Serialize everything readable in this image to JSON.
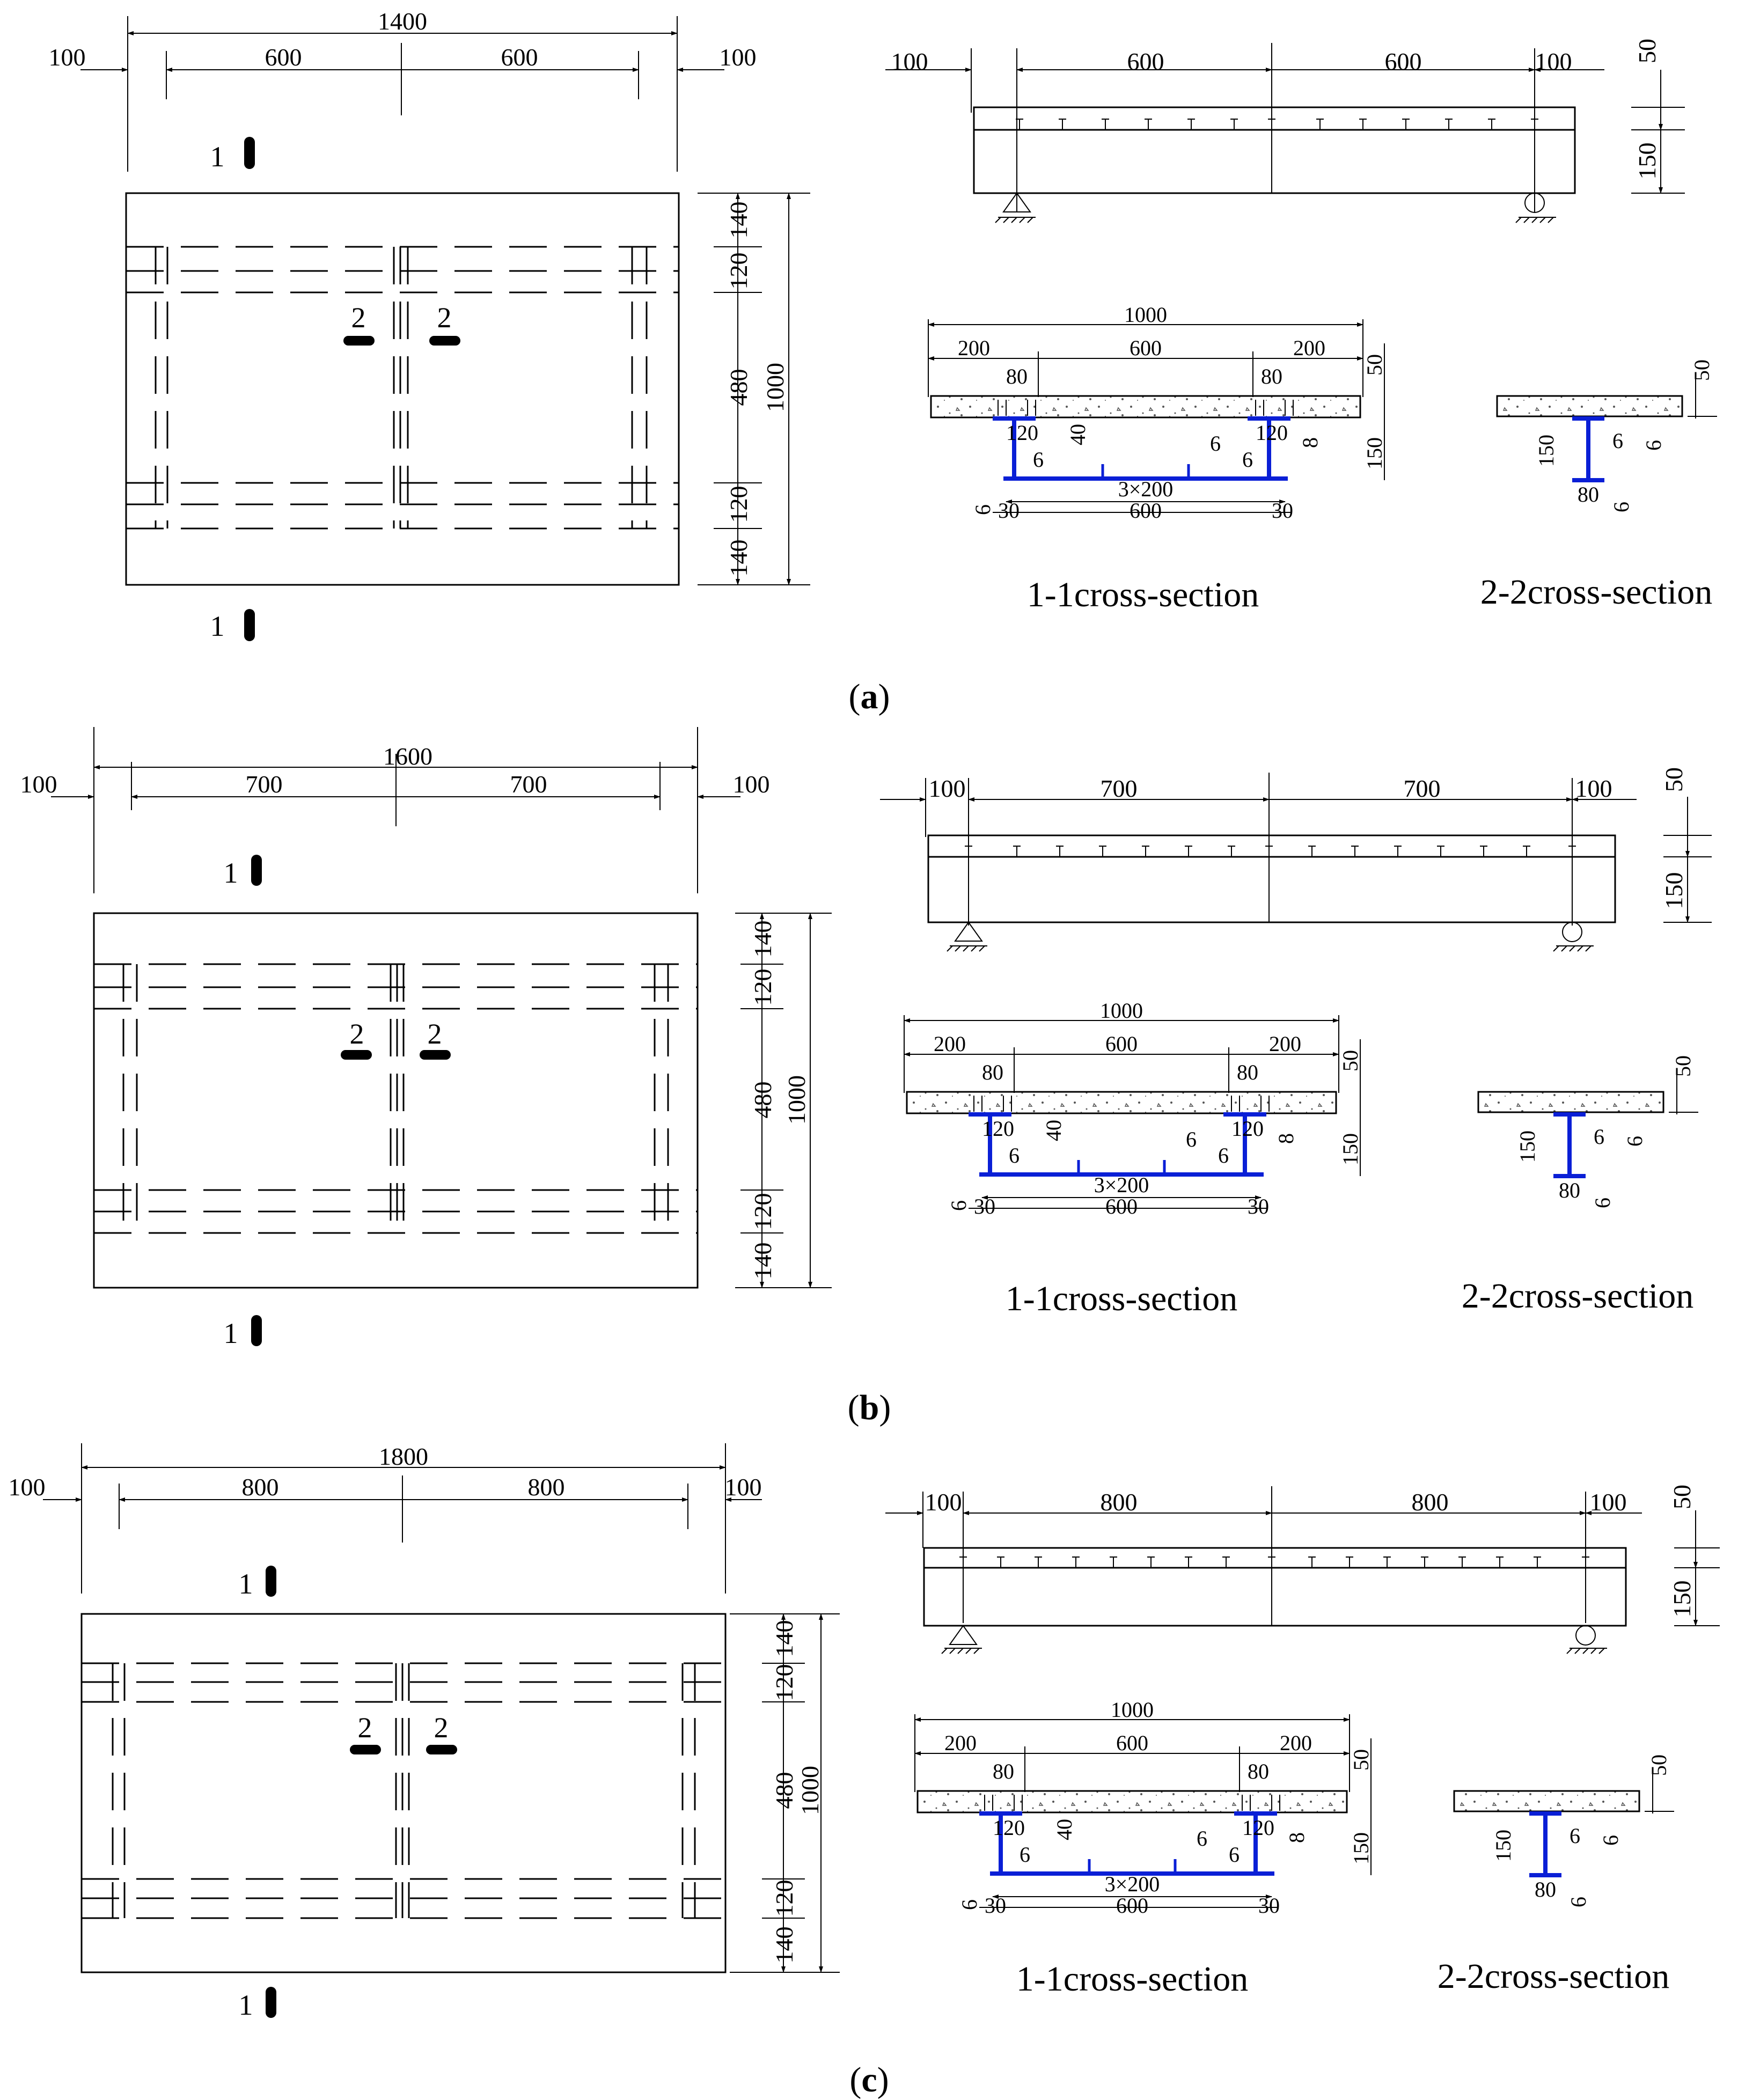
{
  "panels": [
    {
      "id": "a",
      "caption": "a",
      "plan": {
        "total_span": "1400",
        "left_overhang": "100",
        "right_overhang": "100",
        "left_span": "600",
        "right_span": "600",
        "width": "1000",
        "edge_top": "140",
        "girder_top": "120",
        "middle": "480",
        "girder_bottom": "120",
        "edge_bottom": "140",
        "section_mark_1": "1",
        "section_mark_2": "2"
      },
      "elevation": {
        "left_overhang": "100",
        "left_span": "600",
        "right_span": "600",
        "right_overhang": "100",
        "slab": "50",
        "steel": "150"
      },
      "section_11": {
        "title": "1-1cross-section",
        "slab_width": "1000",
        "left_edge": "200",
        "middle": "600",
        "right_edge": "200",
        "flange_left": "80",
        "flange_right": "80",
        "web_height_left": "120",
        "web_height_right": "120",
        "stiffener": "40",
        "web_t_left": "6",
        "web_t_right": "6",
        "web_t_mid": "6",
        "flange_t": "8",
        "bottom_t": "6",
        "rib_spacing": "3×200",
        "bottom_left": "30",
        "bottom_mid": "600",
        "bottom_right": "30",
        "slab": "50",
        "steel": "150"
      },
      "section_22": {
        "title": "2-2cross-section",
        "slab": "50",
        "height": "150",
        "web": "6",
        "flange_t": "6",
        "flange_t2": "6",
        "flange_w": "80"
      }
    },
    {
      "id": "b",
      "caption": "b",
      "plan": {
        "total_span": "1600",
        "left_overhang": "100",
        "right_overhang": "100",
        "left_span": "700",
        "right_span": "700",
        "width": "1000",
        "edge_top": "140",
        "girder_top": "120",
        "middle": "480",
        "girder_bottom": "120",
        "edge_bottom": "140",
        "section_mark_1": "1",
        "section_mark_2": "2"
      },
      "elevation": {
        "left_overhang": "100",
        "left_span": "700",
        "right_span": "700",
        "right_overhang": "100",
        "slab": "50",
        "steel": "150"
      },
      "section_11": {
        "title": "1-1cross-section",
        "slab_width": "1000",
        "left_edge": "200",
        "middle": "600",
        "right_edge": "200",
        "flange_left": "80",
        "flange_right": "80",
        "web_height_left": "120",
        "web_height_right": "120",
        "stiffener": "40",
        "web_t_left": "6",
        "web_t_right": "6",
        "web_t_mid": "6",
        "flange_t": "8",
        "bottom_t": "6",
        "rib_spacing": "3×200",
        "bottom_left": "30",
        "bottom_mid": "600",
        "bottom_right": "30",
        "slab": "50",
        "steel": "150"
      },
      "section_22": {
        "title": "2-2cross-section",
        "slab": "50",
        "height": "150",
        "web": "6",
        "flange_t": "6",
        "flange_t2": "6",
        "flange_w": "80"
      }
    },
    {
      "id": "c",
      "caption": "c",
      "plan": {
        "total_span": "1800",
        "left_overhang": "100",
        "right_overhang": "100",
        "left_span": "800",
        "right_span": "800",
        "width": "1000",
        "edge_top": "140",
        "girder_top": "120",
        "middle": "480",
        "girder_bottom": "120",
        "edge_bottom": "140",
        "section_mark_1": "1",
        "section_mark_2": "2"
      },
      "elevation": {
        "left_overhang": "100",
        "left_span": "800",
        "right_span": "800",
        "right_overhang": "100",
        "slab": "50",
        "steel": "150"
      },
      "section_11": {
        "title": "1-1cross-section",
        "slab_width": "1000",
        "left_edge": "200",
        "middle": "600",
        "right_edge": "200",
        "flange_left": "80",
        "flange_right": "80",
        "web_height_left": "120",
        "web_height_right": "120",
        "stiffener": "40",
        "web_t_left": "6",
        "web_t_right": "6",
        "web_t_mid": "6",
        "flange_t": "8",
        "bottom_t": "6",
        "rib_spacing": "3×200",
        "bottom_left": "30",
        "bottom_mid": "600",
        "bottom_right": "30",
        "slab": "50",
        "steel": "150"
      },
      "section_22": {
        "title": "2-2cross-section",
        "slab": "50",
        "height": "150",
        "web": "6",
        "flange_t": "6",
        "flange_t2": "6",
        "flange_w": "80"
      }
    }
  ],
  "colors": {
    "steel": "#0a1fd6",
    "line": "#000000"
  }
}
